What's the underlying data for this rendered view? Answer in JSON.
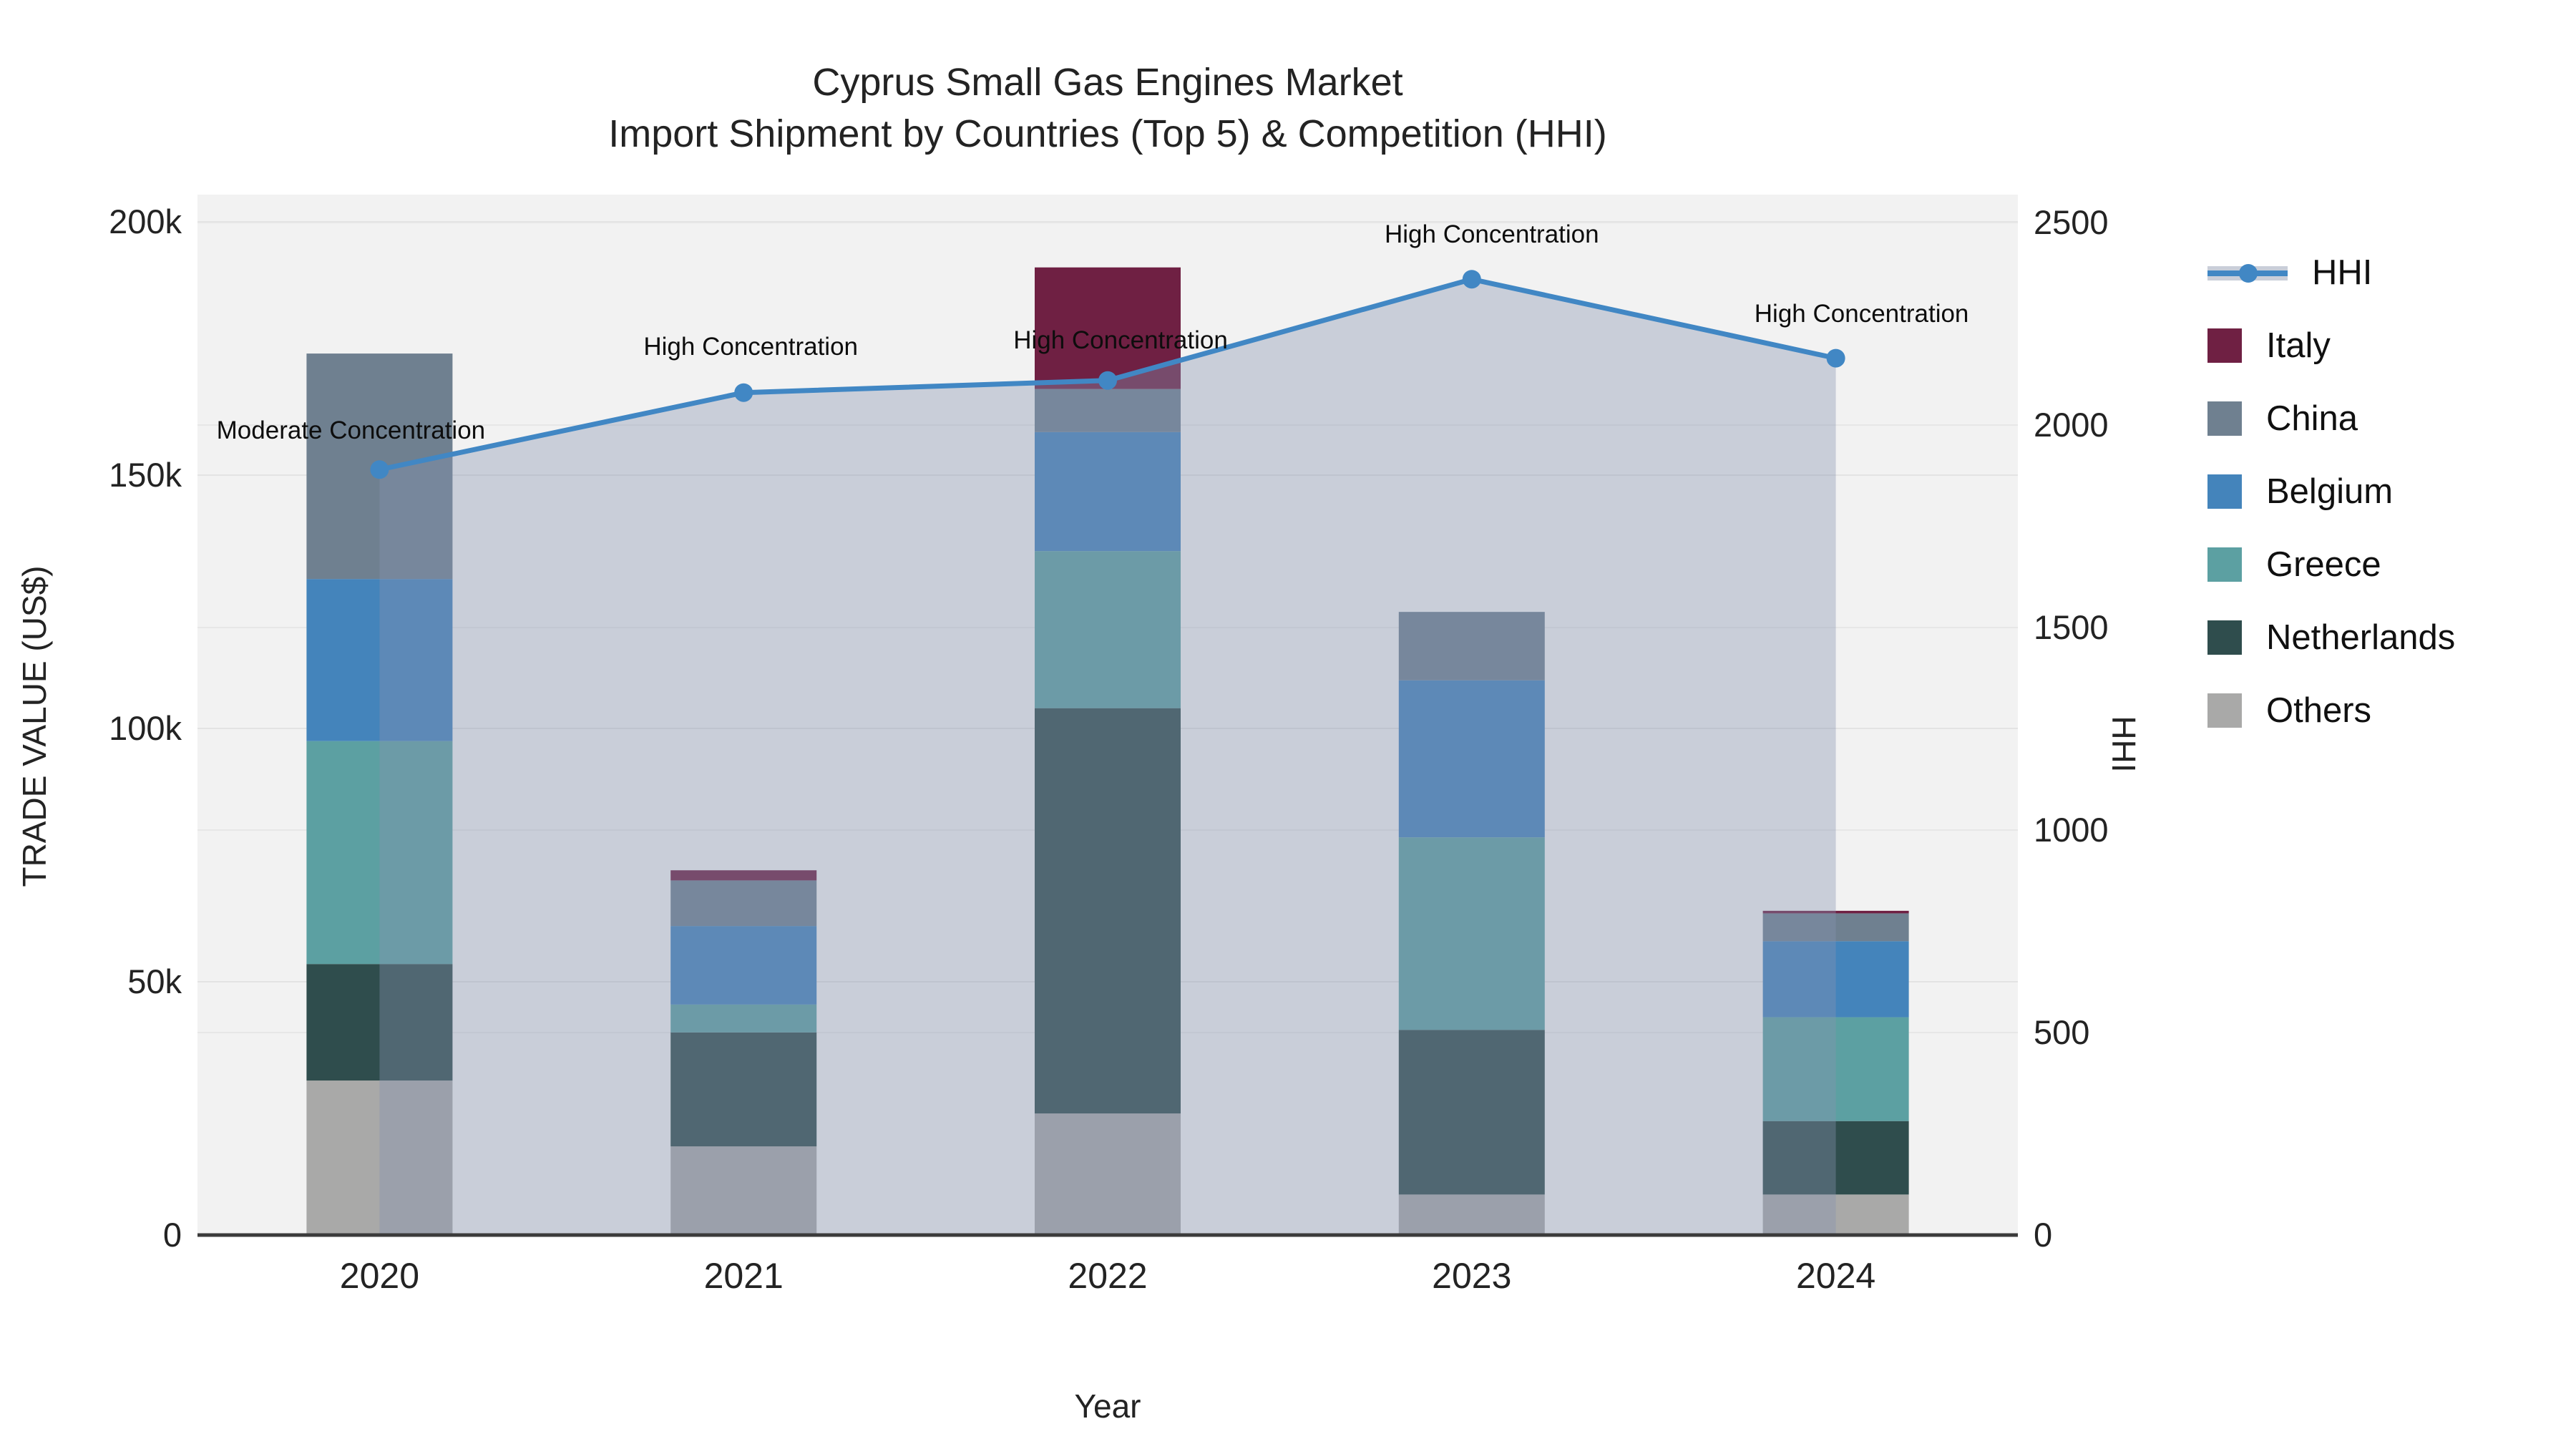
{
  "page": {
    "background": "#ffffff",
    "plot_background": "#f2f2f2"
  },
  "chart_data": {
    "type": "bar",
    "subtype": "stacked_bars_with_line_overlay",
    "title": "Cyprus Small Gas Engines Market",
    "subtitle": "Import Shipment by Countries (Top 5) & Competition (HHI)",
    "xlabel": "Year",
    "ylabel_left": "TRADE VALUE (US$)",
    "ylabel_right": "HHI",
    "categories": [
      "2020",
      "2021",
      "2022",
      "2023",
      "2024"
    ],
    "grid": true,
    "legend_position": "right",
    "ylim_left": [
      0,
      205000
    ],
    "ylim_right": [
      0,
      2560
    ],
    "ytick_values_left": [
      0,
      50000,
      100000,
      150000,
      200000
    ],
    "ytick_labels_left": [
      "0",
      "50k",
      "100k",
      "150k",
      "200k"
    ],
    "ytick_values_right": [
      0,
      500,
      1000,
      1500,
      2000,
      2500
    ],
    "ytick_labels_right": [
      "0",
      "500",
      "1000",
      "1500",
      "2000",
      "2500"
    ],
    "bar_series_bottom_to_top": [
      {
        "name": "Others",
        "color": "#a9a9a8",
        "values": [
          30500,
          17500,
          24000,
          8000,
          8000
        ]
      },
      {
        "name": "Netherlands",
        "color": "#2f4d4d",
        "values": [
          23000,
          22500,
          80000,
          32500,
          14500
        ]
      },
      {
        "name": "Greece",
        "color": "#5ca0a2",
        "values": [
          44000,
          5500,
          31000,
          38000,
          20500
        ]
      },
      {
        "name": "Belgium",
        "color": "#4484bb",
        "values": [
          32000,
          15500,
          23500,
          31000,
          15000
        ]
      },
      {
        "name": "China",
        "color": "#6f8090",
        "values": [
          44500,
          9000,
          8500,
          13500,
          5500
        ]
      },
      {
        "name": "Italy",
        "color": "#6f2043",
        "values": [
          0,
          2000,
          24000,
          0,
          500
        ]
      }
    ],
    "line_series": {
      "name": "HHI",
      "color": "#4187c4",
      "fill_color": "rgba(134,147,176,0.38)",
      "values": [
        1890,
        2080,
        2110,
        2360,
        2165
      ]
    },
    "annotations": [
      {
        "category": "2020",
        "text": "Moderate Concentration"
      },
      {
        "category": "2021",
        "text": "High Concentration"
      },
      {
        "category": "2022",
        "text": "High Concentration"
      },
      {
        "category": "2023",
        "text": "High Concentration"
      },
      {
        "category": "2024",
        "text": "High Concentration"
      }
    ],
    "legend_order": [
      "HHI",
      "Italy",
      "China",
      "Belgium",
      "Greece",
      "Netherlands",
      "Others"
    ]
  }
}
